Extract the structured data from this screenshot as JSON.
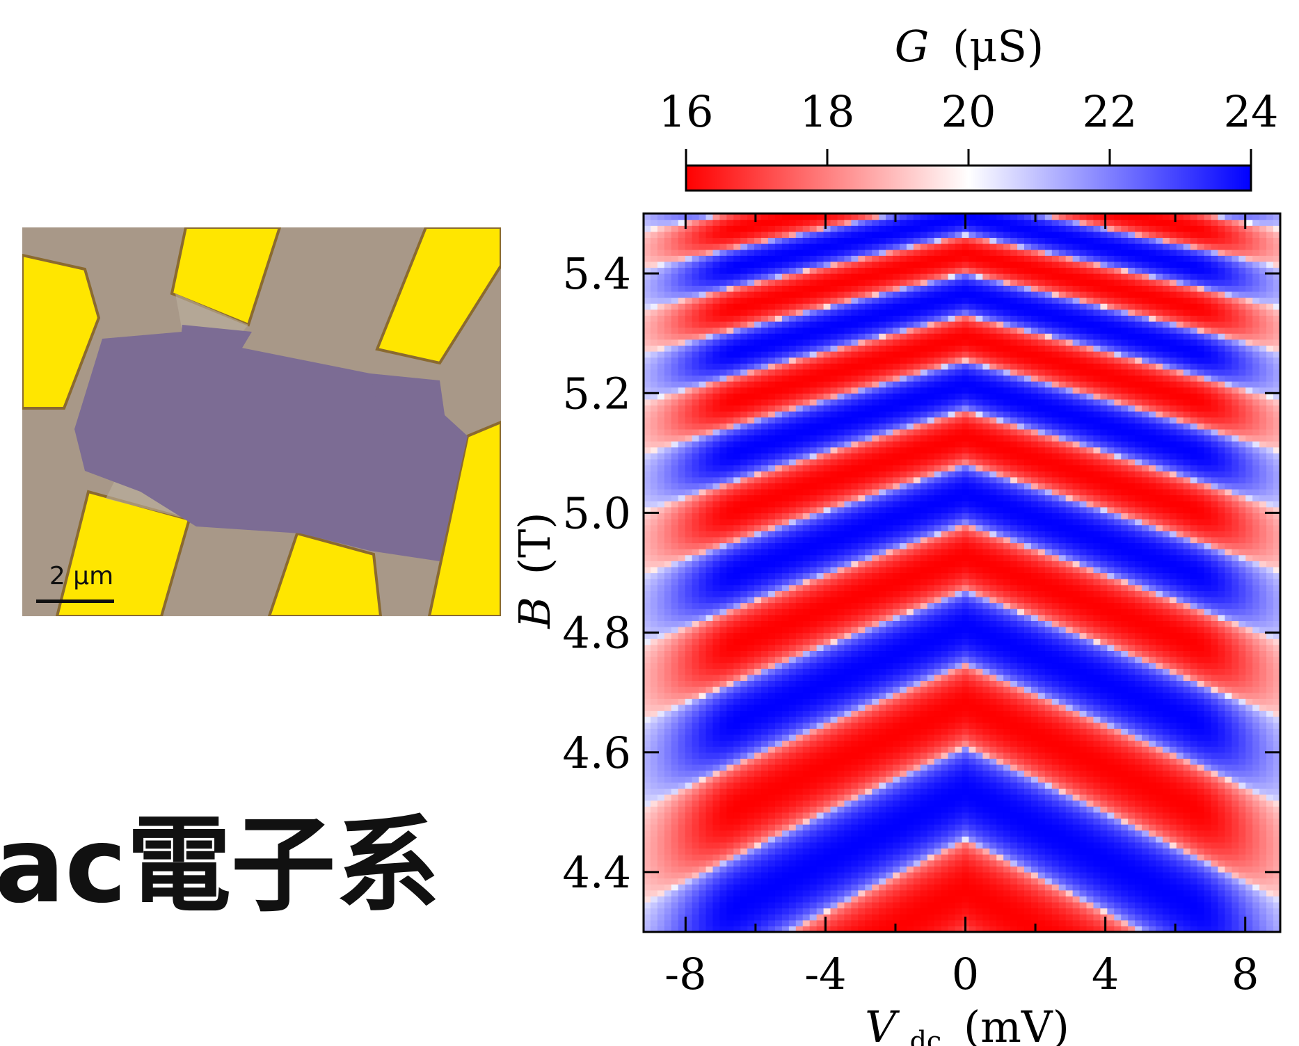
{
  "micrograph": {
    "scale_label": "2 μm",
    "colors": {
      "substrate": "#a89888",
      "flake": "#7c6c94",
      "gold": "#ffe600"
    }
  },
  "slide_text": "ac電子系",
  "chart_data": {
    "type": "heatmap",
    "title": "",
    "xlabel": {
      "symbol": "V",
      "subscript": "dc",
      "unit": "(mV)"
    },
    "ylabel": {
      "symbol": "B",
      "unit": "(T)"
    },
    "xlim": [
      -9.2,
      9.0
    ],
    "ylim": [
      4.3,
      5.5
    ],
    "x_ticks": [
      -8,
      -4,
      0,
      4,
      8
    ],
    "y_ticks": [
      4.4,
      4.6,
      4.8,
      5.0,
      5.2,
      5.4
    ],
    "x_minor_ticks": [
      -6,
      -2,
      2,
      6
    ],
    "colorbar": {
      "label": {
        "symbol": "G",
        "unit": "(μS)"
      },
      "ticks": [
        16,
        18,
        20,
        22,
        24
      ],
      "range": [
        16,
        24
      ],
      "colors": [
        "#ff0000",
        "#ffffff",
        "#0000ff"
      ]
    },
    "fabry_perot_pattern": {
      "description_value": "diamond checkerboard",
      "center_minima_B": [
        4.37,
        4.62,
        4.81,
        5.0,
        5.16,
        5.3,
        5.42
      ],
      "center_maxima_B": [
        4.51,
        4.71,
        4.9,
        5.08,
        5.23,
        5.36,
        5.48
      ],
      "G_min": 16,
      "G_max": 24
    }
  }
}
